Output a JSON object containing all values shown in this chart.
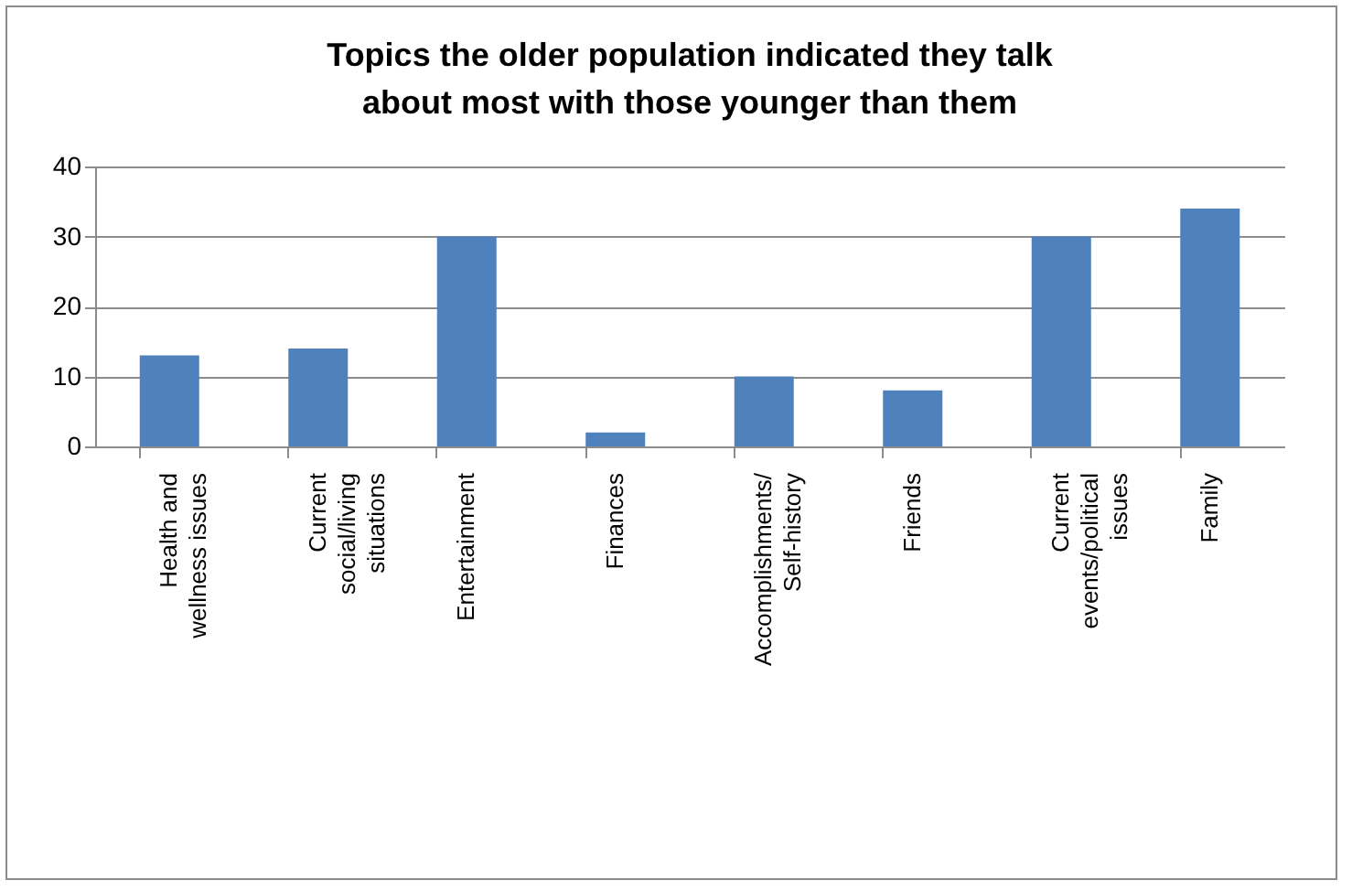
{
  "chart_data": {
    "type": "bar",
    "title": "Topics the older population indicated they talk\nabout most with those younger than them",
    "categories": [
      "Health and\nwellness issues",
      "Current\nsocial/living\nsituations",
      "Entertainment",
      "Finances",
      "Accomplishments/\nSelf-history",
      "Friends",
      "Current\nevents/political\nissues",
      "Family"
    ],
    "values": [
      13,
      14,
      30,
      2,
      10,
      8,
      30,
      34
    ],
    "color": "#4f81bd",
    "ylim": [
      0,
      40
    ],
    "yticks": [
      0,
      10,
      20,
      30,
      40
    ],
    "grid": "y"
  }
}
